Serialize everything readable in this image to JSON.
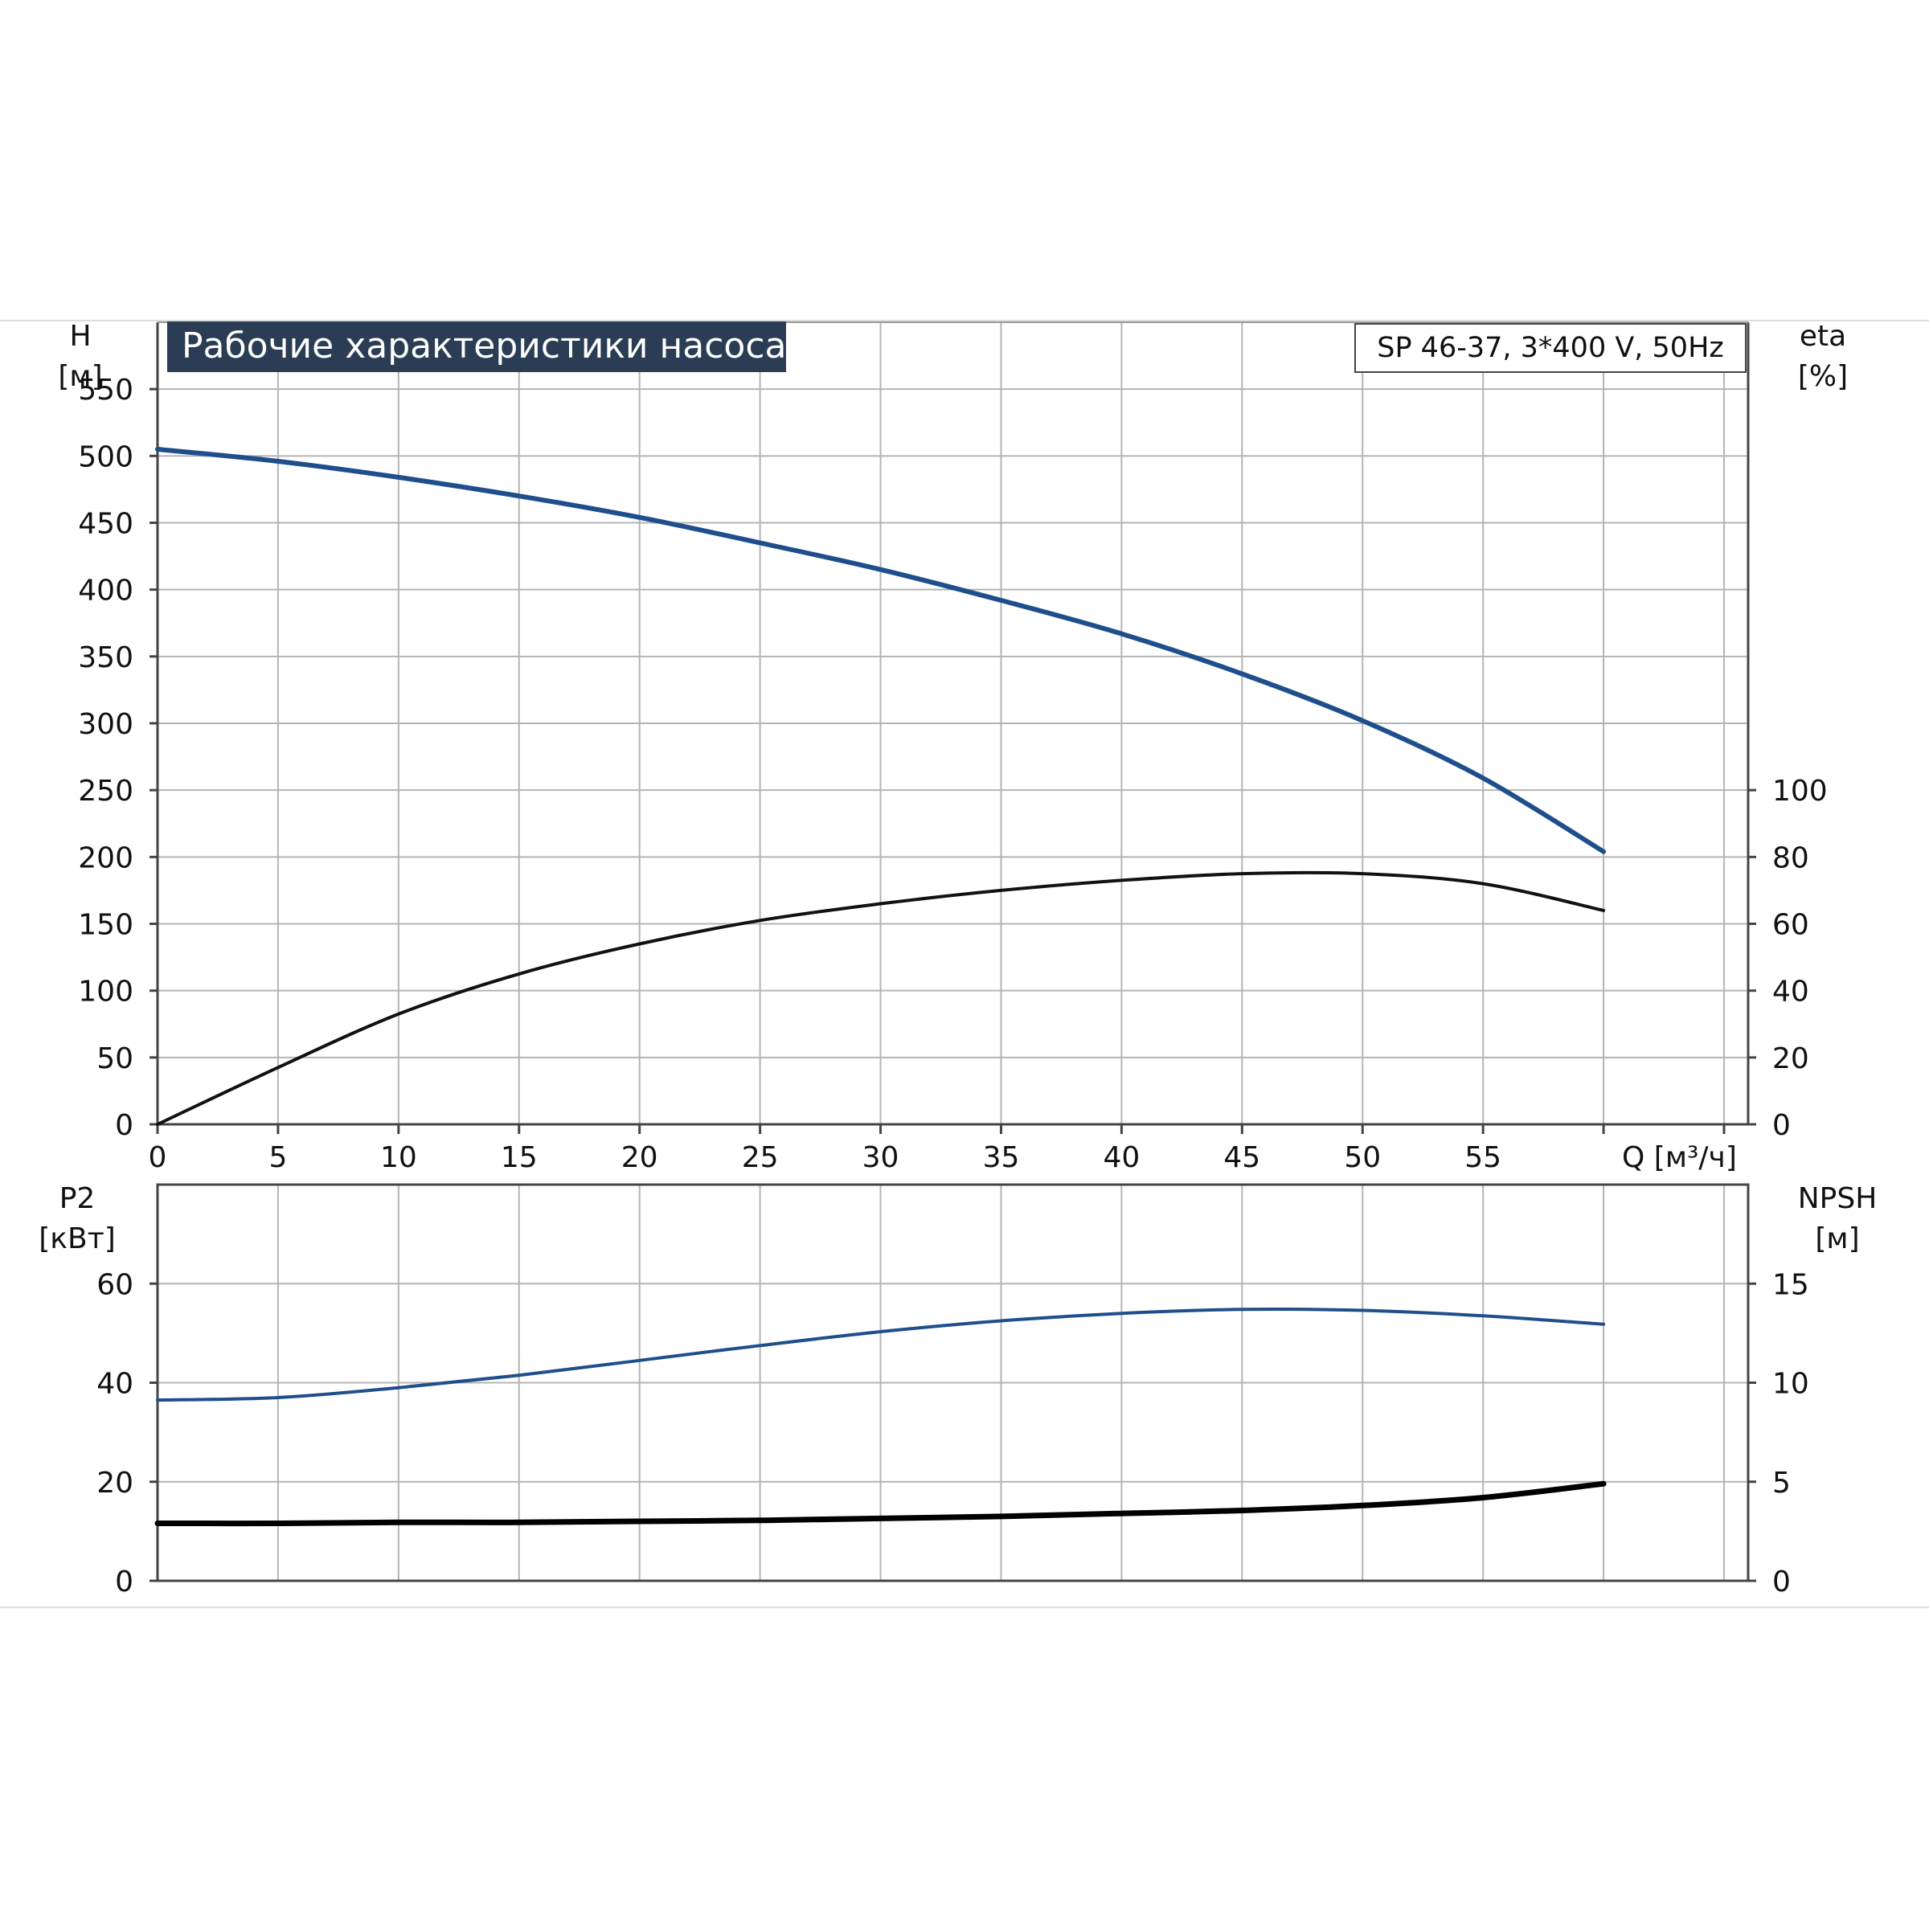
{
  "chart_data": [
    {
      "type": "line",
      "title": "Рабочие характеристики насоса",
      "model_label": "SP 46-37, 3*400 V, 50Hz",
      "xlabel": "Q [м³/ч]",
      "xlim": [
        0,
        66
      ],
      "x_ticks": [
        0,
        5,
        10,
        15,
        20,
        25,
        30,
        35,
        40,
        45,
        50,
        55
      ],
      "y_left": {
        "label_line1": "H",
        "label_line2": "[м]",
        "lim": [
          0,
          600
        ],
        "ticks": [
          0,
          50,
          100,
          150,
          200,
          250,
          300,
          350,
          400,
          450,
          500,
          550
        ]
      },
      "y_right": {
        "label_line1": "eta",
        "label_line2": "[%]",
        "lim": [
          0,
          240
        ],
        "ticks": [
          0,
          20,
          40,
          60,
          80,
          100
        ]
      },
      "grid": true,
      "series": [
        {
          "axis": "left",
          "color": "#1f4e8c",
          "x": [
            0,
            5,
            10,
            15,
            20,
            25,
            30,
            35,
            40,
            45,
            50,
            55,
            60
          ],
          "y": [
            505,
            496,
            484,
            470,
            454,
            435,
            415,
            392,
            367,
            337,
            302,
            259,
            204
          ]
        },
        {
          "axis": "right",
          "color": "#111111",
          "x": [
            0,
            5,
            10,
            15,
            20,
            25,
            30,
            35,
            40,
            45,
            50,
            55,
            60
          ],
          "y": [
            0,
            17,
            33,
            45,
            54,
            61,
            66,
            70,
            73,
            75,
            75,
            72,
            64
          ]
        }
      ]
    },
    {
      "type": "line",
      "xlim": [
        0,
        66
      ],
      "y_left": {
        "label_line1": "P2",
        "label_line2": "[кВт]",
        "lim": [
          0,
          80
        ],
        "ticks": [
          0,
          20,
          40,
          60
        ]
      },
      "y_right": {
        "label_line1": "NPSH",
        "label_line2": "[м]",
        "lim": [
          0,
          20
        ],
        "ticks": [
          0,
          5,
          10,
          15
        ]
      },
      "grid": true,
      "series": [
        {
          "axis": "left",
          "color": "#1f4e8c",
          "x": [
            0,
            5,
            10,
            15,
            20,
            25,
            30,
            35,
            40,
            45,
            50,
            55,
            60
          ],
          "y": [
            36.5,
            37,
            39,
            41.5,
            44.5,
            47.5,
            50.3,
            52.5,
            54,
            54.8,
            54.6,
            53.5,
            51.8
          ]
        },
        {
          "axis": "right",
          "color": "#000000",
          "x": [
            0,
            5,
            10,
            15,
            20,
            25,
            30,
            35,
            40,
            45,
            50,
            55,
            60
          ],
          "y": [
            2.9,
            2.9,
            2.95,
            2.95,
            3.0,
            3.05,
            3.15,
            3.25,
            3.4,
            3.55,
            3.8,
            4.2,
            4.9
          ]
        }
      ]
    }
  ]
}
